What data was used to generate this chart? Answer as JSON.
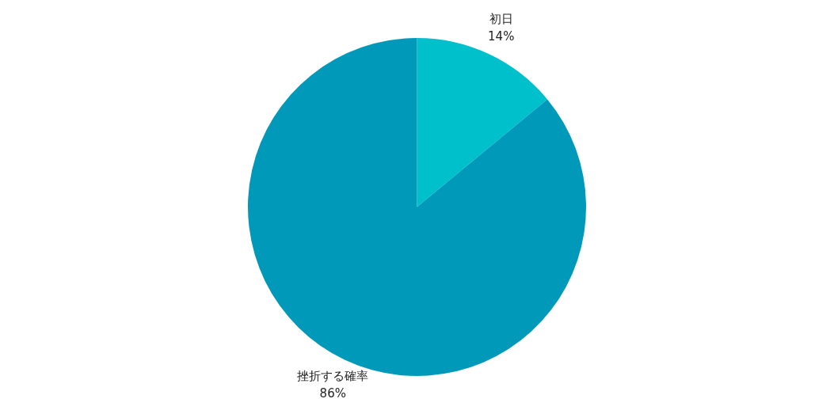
{
  "chart_data": {
    "type": "pie",
    "categories": [
      "初日",
      "挫折する確率"
    ],
    "values": [
      14,
      86
    ],
    "colors": [
      "#00c0cc",
      "#0099ba"
    ],
    "value_labels": [
      "14%",
      "86%"
    ],
    "legend": false
  }
}
